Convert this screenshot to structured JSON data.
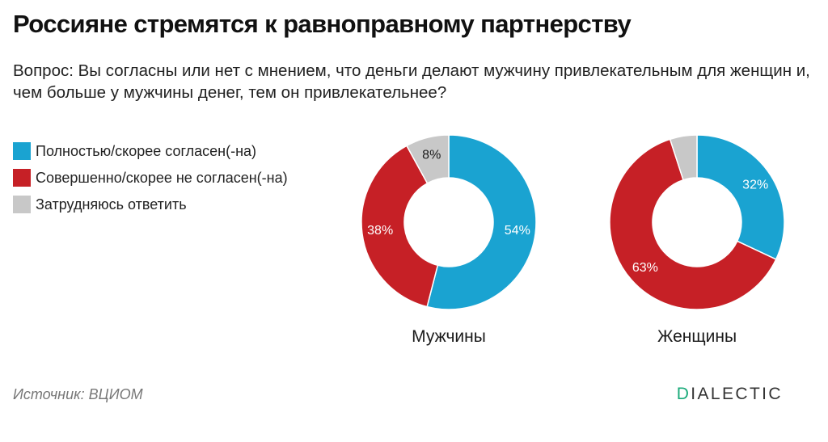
{
  "title": "Россияне стремятся к равноправному партнерству",
  "subtitle": "Вопрос: Вы согласны или нет с мнением, что деньги делают мужчину привлекательным для женщин и, чем больше у мужчины денег, тем он привлекательнее?",
  "legend": [
    {
      "label": "Полностью/скорее согласен(-на)",
      "color": "#1aa3d1"
    },
    {
      "label": "Совершенно/скорее не согласен(-на)",
      "color": "#c62026"
    },
    {
      "label": "Затрудняюсь ответить",
      "color": "#c8c8c8"
    }
  ],
  "chart_data": [
    {
      "type": "pie",
      "donut": true,
      "group": "Мужчины",
      "categories": [
        "Полностью/скорее согласен(-на)",
        "Совершенно/скорее не согласен(-на)",
        "Затрудняюсь ответить"
      ],
      "values": [
        54,
        38,
        8
      ],
      "labels": [
        "54%",
        "38%",
        "8%"
      ],
      "colors": [
        "#1aa3d1",
        "#c62026",
        "#c8c8c8"
      ]
    },
    {
      "type": "pie",
      "donut": true,
      "group": "Женщины",
      "categories": [
        "Полностью/скорее согласен(-на)",
        "Совершенно/скорее не согласен(-на)",
        "Затрудняюсь ответить"
      ],
      "values": [
        32,
        63,
        5
      ],
      "labels": [
        "32%",
        "63%",
        ""
      ],
      "colors": [
        "#1aa3d1",
        "#c62026",
        "#c8c8c8"
      ]
    }
  ],
  "source": "Источник: ВЦИОМ",
  "brand": {
    "first": "D",
    "rest": "IALECTIC",
    "accent": "#1aaa7a"
  }
}
